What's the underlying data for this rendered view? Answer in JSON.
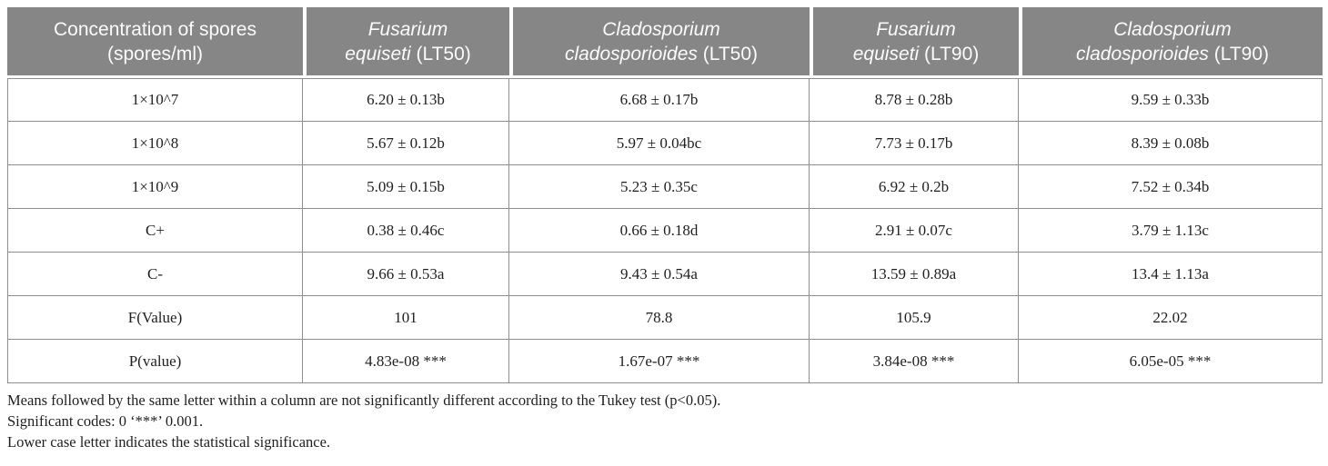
{
  "colors": {
    "header_background": "#868686",
    "header_text": "#fbfbfb",
    "cell_border": "#8e8e8e",
    "body_text": "#1f1f1f"
  },
  "table": {
    "columns": [
      {
        "line1": "Concentration of spores",
        "line2": "(spores/ml)"
      },
      {
        "line1": "Fusarium",
        "line2_italic": "equiseti",
        "line2_plain": "(LT50)"
      },
      {
        "line1": "Cladosporium",
        "line2_italic": "cladosporioides",
        "line2_plain": "(LT50)"
      },
      {
        "line1": "Fusarium",
        "line2_italic": "equiseti",
        "line2_plain": "(LT90)"
      },
      {
        "line1": "Cladosporium",
        "line2_italic": "cladosporioides",
        "line2_plain": "(LT90)"
      }
    ],
    "rows": [
      {
        "label": "1×10^7",
        "values": [
          "6.20 ± 0.13b",
          "6.68 ± 0.17b",
          "8.78 ± 0.28b",
          "9.59 ± 0.33b"
        ]
      },
      {
        "label": "1×10^8",
        "values": [
          "5.67 ± 0.12b",
          "5.97 ± 0.04bc",
          "7.73 ± 0.17b",
          "8.39 ± 0.08b"
        ]
      },
      {
        "label": "1×10^9",
        "values": [
          "5.09 ± 0.15b",
          "5.23 ± 0.35c",
          "6.92 ± 0.2b",
          "7.52 ± 0.34b"
        ]
      },
      {
        "label": "C+",
        "values": [
          "0.38 ± 0.46c",
          "0.66 ± 0.18d",
          "2.91 ± 0.07c",
          "3.79 ± 1.13c"
        ]
      },
      {
        "label": "C-",
        "values": [
          "9.66 ± 0.53a",
          "9.43 ± 0.54a",
          "13.59 ± 0.89a",
          "13.4 ± 1.13a"
        ]
      },
      {
        "label": "F(Value)",
        "values": [
          "101",
          "78.8",
          "105.9",
          "22.02"
        ]
      },
      {
        "label": "P(value)",
        "values": [
          "4.83e-08 ***",
          "1.67e-07 ***",
          "3.84e-08 ***",
          "6.05e-05 ***"
        ]
      }
    ]
  },
  "footnotes": [
    "Means followed by the same letter within a column are not significantly different according to the Tukey test (p<0.05).",
    "Significant codes: 0 ‘***’ 0.001.",
    "Lower case letter indicates the statistical significance."
  ]
}
